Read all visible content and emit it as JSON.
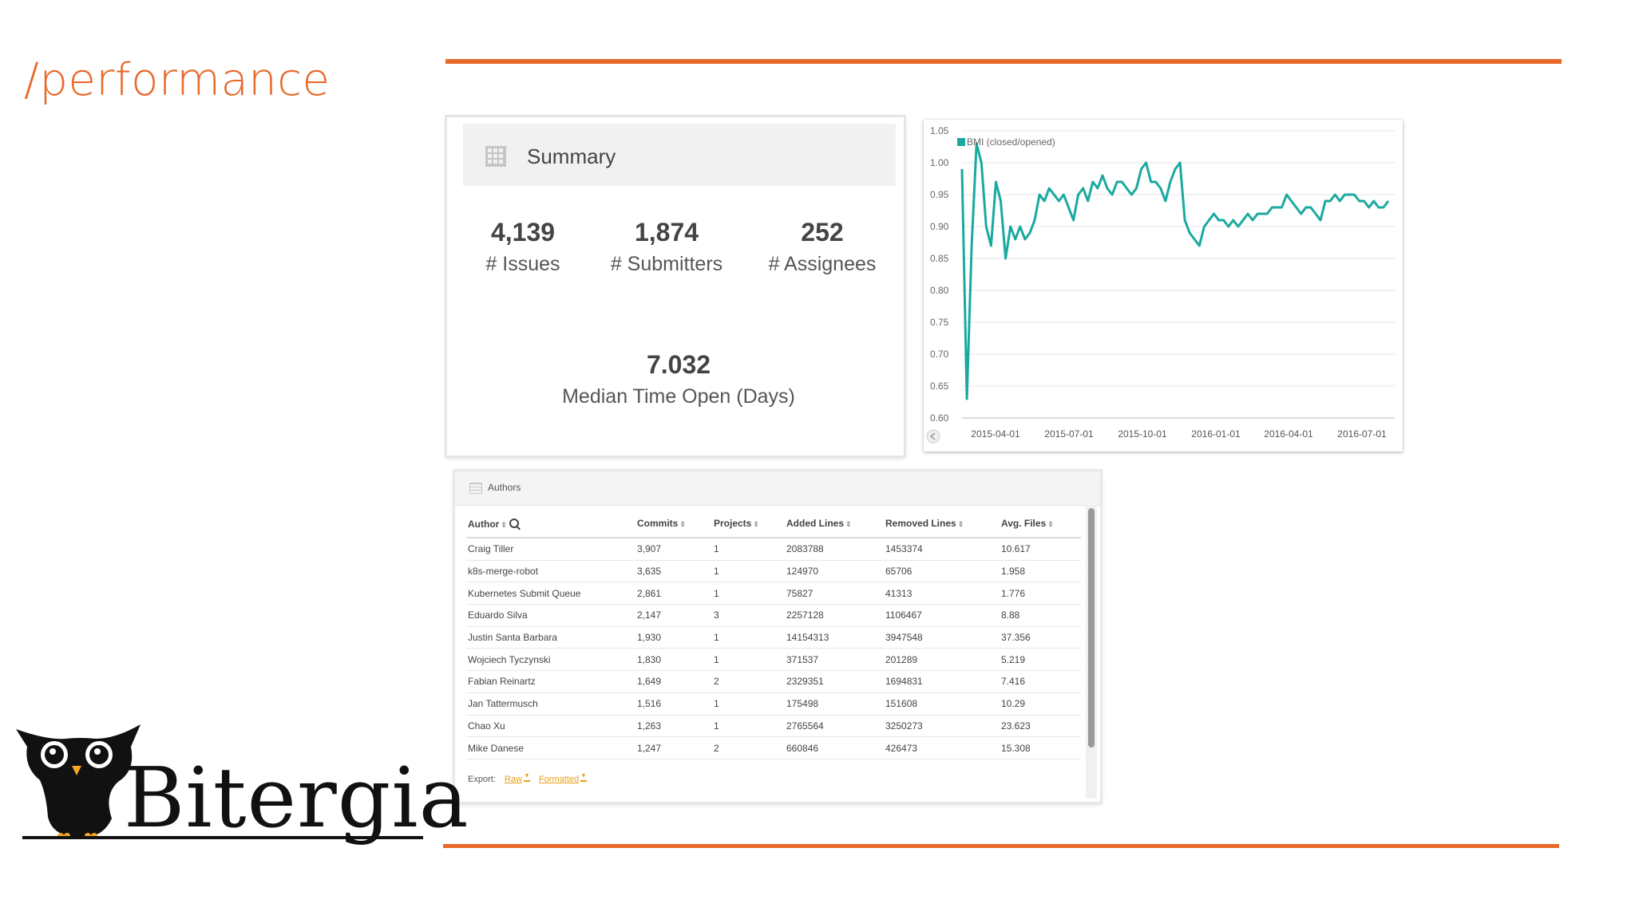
{
  "slide": {
    "title": "/performance"
  },
  "summary": {
    "title": "Summary",
    "metrics": [
      {
        "value": "4,139",
        "label": "# Issues"
      },
      {
        "value": "1,874",
        "label": "# Submitters"
      },
      {
        "value": "252",
        "label": "# Assignees"
      },
      {
        "value": "7.032",
        "label": "Median Time Open (Days)"
      }
    ]
  },
  "chart_data": {
    "type": "line",
    "series": [
      {
        "name": "BMI (closed/opened)",
        "color": "#1aa9a0",
        "values": [
          0.99,
          0.63,
          0.87,
          1.03,
          1.0,
          0.9,
          0.87,
          0.97,
          0.94,
          0.85,
          0.9,
          0.88,
          0.9,
          0.88,
          0.89,
          0.91,
          0.95,
          0.94,
          0.96,
          0.95,
          0.94,
          0.95,
          0.93,
          0.91,
          0.95,
          0.96,
          0.94,
          0.97,
          0.96,
          0.98,
          0.96,
          0.95,
          0.97,
          0.97,
          0.96,
          0.95,
          0.96,
          0.99,
          1.0,
          0.97,
          0.97,
          0.96,
          0.94,
          0.97,
          0.99,
          1.0,
          0.91,
          0.89,
          0.88,
          0.87,
          0.9,
          0.91,
          0.92,
          0.91,
          0.91,
          0.9,
          0.91,
          0.9,
          0.91,
          0.92,
          0.91,
          0.92,
          0.92,
          0.92,
          0.93,
          0.93,
          0.93,
          0.95,
          0.94,
          0.93,
          0.92,
          0.93,
          0.93,
          0.92,
          0.91,
          0.94,
          0.94,
          0.95,
          0.94,
          0.95,
          0.95,
          0.95,
          0.94,
          0.94,
          0.93,
          0.94,
          0.93,
          0.93,
          0.94
        ]
      }
    ],
    "x_ticks": [
      "2015-04-01",
      "2015-07-01",
      "2015-10-01",
      "2016-01-01",
      "2016-04-01",
      "2016-07-01"
    ],
    "y_ticks": [
      "0.60",
      "0.65",
      "0.70",
      "0.75",
      "0.80",
      "0.85",
      "0.90",
      "0.95",
      "1.00",
      "1.05"
    ],
    "ylim": [
      0.6,
      1.05
    ],
    "grid": true,
    "legend": "top-left"
  },
  "authors": {
    "title": "Authors",
    "columns": [
      "Author",
      "Commits",
      "Projects",
      "Added Lines",
      "Removed Lines",
      "Avg. Files"
    ],
    "rows": [
      [
        "Craig Tiller",
        "3,907",
        "1",
        "2083788",
        "1453374",
        "10.617"
      ],
      [
        "k8s-merge-robot",
        "3,635",
        "1",
        "124970",
        "65706",
        "1.958"
      ],
      [
        "Kubernetes Submit Queue",
        "2,861",
        "1",
        "75827",
        "41313",
        "1.776"
      ],
      [
        "Eduardo Silva",
        "2,147",
        "3",
        "2257128",
        "1106467",
        "8.88"
      ],
      [
        "Justin Santa Barbara",
        "1,930",
        "1",
        "14154313",
        "3947548",
        "37.356"
      ],
      [
        "Wojciech Tyczynski",
        "1,830",
        "1",
        "371537",
        "201289",
        "5.219"
      ],
      [
        "Fabian Reinartz",
        "1,649",
        "2",
        "2329351",
        "1694831",
        "7.416"
      ],
      [
        "Jan Tattermusch",
        "1,516",
        "1",
        "175498",
        "151608",
        "10.29"
      ],
      [
        "Chao Xu",
        "1,263",
        "1",
        "2765564",
        "3250273",
        "23.623"
      ],
      [
        "Mike Danese",
        "1,247",
        "2",
        "660846",
        "426473",
        "15.308"
      ]
    ],
    "export_label": "Export:",
    "export_raw": "Raw",
    "export_formatted": "Formatted"
  },
  "logo": {
    "word": "Bitergia"
  },
  "colors": {
    "accent": "#e8692a",
    "line": "#1aa9a0",
    "link": "#e8a020"
  }
}
